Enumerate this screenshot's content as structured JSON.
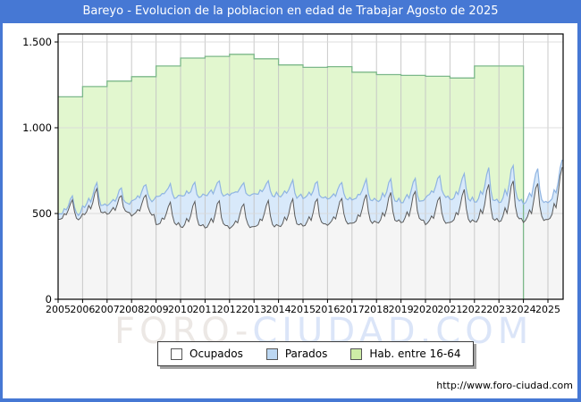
{
  "header": {
    "title": "Bareyo - Evolucion de la poblacion en edad de Trabajar Agosto de 2025"
  },
  "footer": {
    "url": "http://www.foro-ciudad.com"
  },
  "watermark": {
    "part1": "FORO-",
    "part2": "CIUDAD.COM"
  },
  "legend": {
    "items": [
      {
        "label": "Ocupados",
        "color": "#ffffff"
      },
      {
        "label": "Parados",
        "color": "#bcd7f2"
      },
      {
        "label": "Hab. entre 16-64",
        "color": "#cdeca6"
      }
    ]
  },
  "colors": {
    "frame": "#4678d4",
    "title_text": "#ffffff",
    "grid_vertical": "#c4c4c4",
    "grid_horizontal": "#dadada",
    "axis": "#000000",
    "watermark_gray": "#ece8e5",
    "watermark_blue": "#dbe5f8"
  },
  "chart_data": {
    "type": "area",
    "title": "Bareyo - Evolucion de la poblacion en edad de Trabajar Agosto de 2025",
    "x_tick_labels": [
      "2005",
      "2006",
      "2007",
      "2008",
      "2009",
      "2010",
      "2011",
      "2012",
      "2013",
      "2014",
      "2015",
      "2016",
      "2017",
      "2018",
      "2019",
      "2020",
      "2021",
      "2022",
      "2023",
      "2024",
      "2025"
    ],
    "y_ticks": [
      {
        "value": 0,
        "label": "0"
      },
      {
        "value": 500,
        "label": "500"
      },
      {
        "value": 1000,
        "label": "1.000"
      },
      {
        "value": 1500,
        "label": "1.500"
      }
    ],
    "ylim": [
      0,
      1547
    ],
    "x_range": [
      "2005-01",
      "2025-08"
    ],
    "months_in_final_year": 8,
    "grid": true,
    "legend_position": "bottom",
    "series_meta": [
      {
        "name": "Ocupados",
        "fill": "#f5f5f5",
        "stroke": "#5a5a5a",
        "stacked": true
      },
      {
        "name": "Parados",
        "fill": "#d8e9fa",
        "stroke": "#8fb4e2",
        "stacked": true
      },
      {
        "name": "Hab. entre 16-64",
        "fill": "#e2f7cf",
        "stroke": "#7cb88a",
        "stacked": false
      }
    ],
    "hab_entre_16_64": {
      "years": [
        2005,
        2006,
        2007,
        2008,
        2009,
        2010,
        2011,
        2012,
        2013,
        2014,
        2015,
        2016,
        2017,
        2018,
        2019,
        2020,
        2021,
        2022,
        2023
      ],
      "values": [
        1180,
        1240,
        1272,
        1298,
        1360,
        1406,
        1416,
        1428,
        1402,
        1366,
        1352,
        1356,
        1324,
        1310,
        1305,
        1300,
        1290,
        1360,
        1360
      ]
    },
    "ocupados_by_year": {
      "years": [
        2005,
        2006,
        2007,
        2008,
        2009,
        2010,
        2011,
        2012,
        2013,
        2014,
        2015,
        2016,
        2017,
        2018,
        2019,
        2020,
        2021,
        2022,
        2023,
        2024,
        2025
      ],
      "winter_base": [
        462,
        495,
        500,
        488,
        432,
        420,
        420,
        415,
        420,
        425,
        430,
        435,
        440,
        445,
        450,
        438,
        445,
        450,
        455,
        452,
        462
      ],
      "summer_peak": [
        578,
        640,
        605,
        612,
        565,
        565,
        575,
        560,
        575,
        580,
        585,
        592,
        610,
        618,
        628,
        600,
        640,
        665,
        690,
        680,
        770
      ]
    },
    "parados_by_year": {
      "years": [
        2005,
        2006,
        2007,
        2008,
        2009,
        2010,
        2011,
        2012,
        2013,
        2014,
        2015,
        2016,
        2017,
        2018,
        2019,
        2020,
        2021,
        2022,
        2023,
        2024,
        2025
      ],
      "winter": [
        30,
        45,
        52,
        85,
        165,
        182,
        188,
        196,
        190,
        176,
        162,
        150,
        138,
        126,
        116,
        158,
        132,
        116,
        110,
        106,
        100
      ],
      "summer": [
        22,
        32,
        40,
        55,
        85,
        88,
        92,
        95,
        92,
        86,
        80,
        76,
        70,
        66,
        62,
        112,
        82,
        88,
        85,
        80,
        22
      ]
    },
    "seasonal_profile_ocupados": [
      0.0,
      0.02,
      0.12,
      0.32,
      0.22,
      0.5,
      0.85,
      1.0,
      0.4,
      0.12,
      0.04,
      0.08
    ],
    "seasonal_profile_parados": [
      1.0,
      0.98,
      0.9,
      0.76,
      0.8,
      0.58,
      0.32,
      0.26,
      0.52,
      0.74,
      0.88,
      0.96
    ]
  }
}
